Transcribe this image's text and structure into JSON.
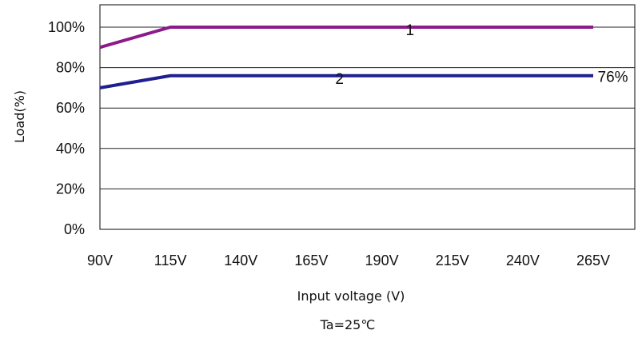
{
  "chart_data": {
    "type": "line",
    "xlabel": "Input voltage (V)",
    "ylabel": "Load(%)",
    "note": "Ta=25℃",
    "x_ticks": [
      90,
      115,
      140,
      165,
      190,
      215,
      240,
      265
    ],
    "x_tick_labels": [
      "90V",
      "115V",
      "140V",
      "165V",
      "190V",
      "215V",
      "240V",
      "265V"
    ],
    "y_ticks": [
      0,
      20,
      40,
      60,
      80,
      100
    ],
    "y_tick_labels": [
      "0%",
      "20%",
      "40%",
      "60%",
      "80%",
      "100%"
    ],
    "xlim": [
      90,
      285
    ],
    "ylim": [
      0,
      110
    ],
    "grid": "horizontal",
    "series": [
      {
        "label": "1",
        "color": "#8B1A8B",
        "x": [
          90,
          115,
          265
        ],
        "y": [
          90,
          100,
          100
        ],
        "label_at": {
          "x": 200,
          "y": 96
        }
      },
      {
        "label": "2",
        "color": "#1F1F8F",
        "x": [
          90,
          115,
          265
        ],
        "y": [
          70,
          76,
          76
        ],
        "label_at": {
          "x": 175,
          "y": 72
        }
      }
    ],
    "annotations": [
      {
        "text": "76%",
        "x": 266,
        "y": 76
      }
    ]
  }
}
